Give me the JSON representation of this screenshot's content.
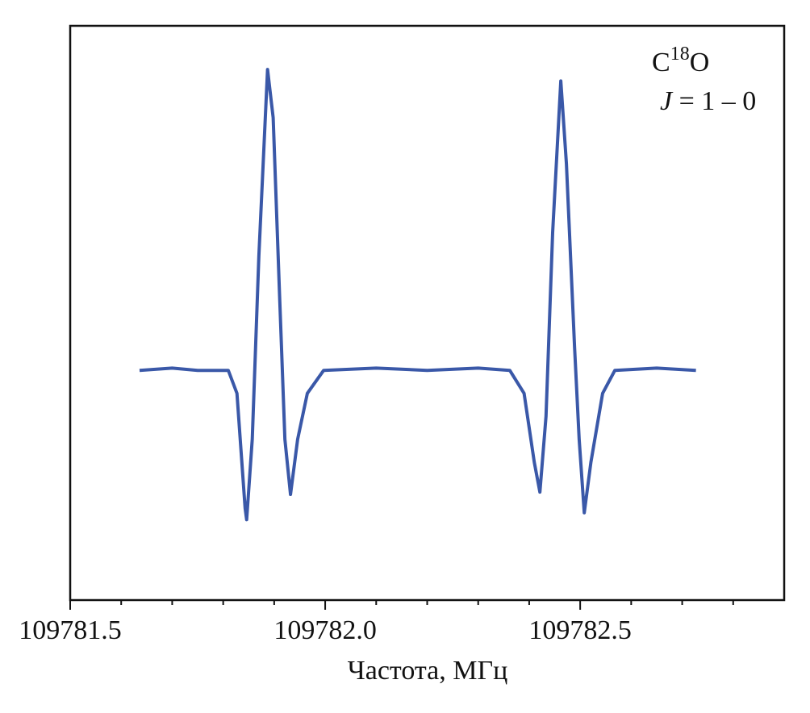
{
  "chart_data": {
    "type": "line",
    "xlabel": "Частота, МГц",
    "annotations": [
      [
        "C",
        "18",
        "O"
      ],
      [
        "J",
        " = 1 – 0"
      ]
    ],
    "xlim": [
      109781.5,
      109782.9
    ],
    "ylim": [
      -1,
      1.5
    ],
    "xticks": [
      109781.5,
      {
        "value": 109782.0,
        "label": "109782.0"
      },
      109782.5
    ],
    "xminorticks": [
      109781.6,
      109781.7,
      109781.8,
      109781.9,
      109782.1,
      109782.2,
      109782.3,
      109782.4,
      109782.6,
      109782.7,
      109782.8
    ],
    "series": [
      {
        "color": "#3a58a8",
        "x": [
          109781.636,
          109781.7,
          109781.75,
          109781.81,
          109781.827,
          109781.843,
          109781.846,
          109781.857,
          109781.87,
          109781.887,
          109781.898,
          109781.911,
          109781.921,
          109781.932,
          109781.946,
          109781.965,
          109781.997,
          109782.1,
          109782.2,
          109782.3,
          109782.362,
          109782.39,
          109782.41,
          109782.421,
          109782.433,
          109782.446,
          109782.462,
          109782.473,
          109782.489,
          109782.498,
          109782.508,
          109782.521,
          109782.544,
          109782.568,
          109782.65,
          109782.727
        ],
        "values": [
          0,
          0.01,
          0,
          0,
          -0.1,
          -0.6,
          -0.65,
          -0.3,
          0.5,
          1.31,
          1.1,
          0.3,
          -0.3,
          -0.54,
          -0.3,
          -0.1,
          0,
          0.01,
          0,
          0.01,
          0,
          -0.1,
          -0.4,
          -0.53,
          -0.2,
          0.6,
          1.26,
          0.9,
          0.1,
          -0.3,
          -0.62,
          -0.4,
          -0.1,
          0,
          0.01,
          0
        ]
      }
    ]
  }
}
